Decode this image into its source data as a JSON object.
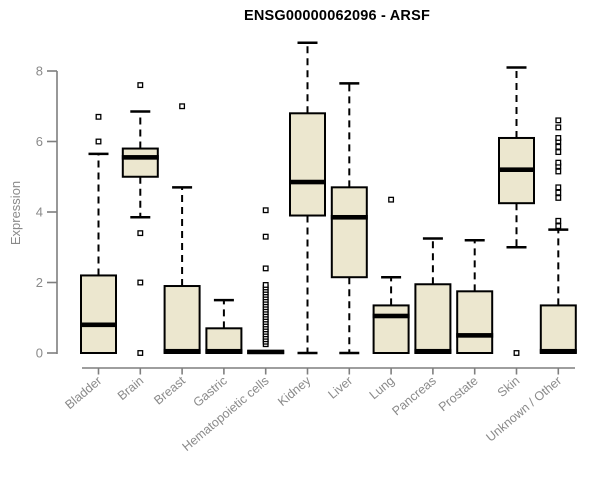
{
  "title": "ENSG00000062096 - ARSF",
  "chart_data": {
    "type": "boxplot",
    "title": "ENSG00000062096 - ARSF",
    "ylabel": "Expression",
    "xlabel": "",
    "ylim": [
      0,
      8.9
    ],
    "yticks": [
      0,
      2,
      4,
      6,
      8
    ],
    "grid": false,
    "legend": "none",
    "categories": [
      "Bladder",
      "Brain",
      "Breast",
      "Gastric",
      "Hematopoietic cells",
      "Kidney",
      "Liver",
      "Lung",
      "Pancreas",
      "Prostate",
      "Skin",
      "Unknown / Other"
    ],
    "series": [
      {
        "name": "Bladder",
        "whisker_low": 0,
        "q1": 0,
        "median": 0.8,
        "q3": 2.2,
        "whisker_high": 5.65,
        "outliers": [
          6.0,
          6.7
        ]
      },
      {
        "name": "Brain",
        "whisker_low": 3.85,
        "q1": 5.0,
        "median": 5.55,
        "q3": 5.8,
        "whisker_high": 6.85,
        "outliers": [
          0,
          2.0,
          3.4,
          7.6
        ]
      },
      {
        "name": "Breast",
        "whisker_low": 0,
        "q1": 0,
        "median": 0.05,
        "q3": 1.9,
        "whisker_high": 4.7,
        "outliers": [
          7.0
        ]
      },
      {
        "name": "Gastric",
        "whisker_low": 0,
        "q1": 0,
        "median": 0.05,
        "q3": 0.7,
        "whisker_high": 1.5,
        "outliers": []
      },
      {
        "name": "Hematopoietic cells",
        "whisker_low": 0,
        "q1": 0,
        "median": 0.03,
        "q3": 0.05,
        "whisker_high": 0.05,
        "outliers": [
          0.25,
          0.32,
          0.39,
          0.46,
          0.53,
          0.6,
          0.67,
          0.74,
          0.81,
          0.88,
          0.95,
          1.02,
          1.09,
          1.16,
          1.23,
          1.3,
          1.37,
          1.44,
          1.51,
          1.58,
          1.65,
          1.72,
          1.79,
          1.86,
          1.93,
          2.4,
          3.3,
          4.05
        ]
      },
      {
        "name": "Kidney",
        "whisker_low": 0,
        "q1": 3.9,
        "median": 4.85,
        "q3": 6.8,
        "whisker_high": 8.8,
        "outliers": []
      },
      {
        "name": "Liver",
        "whisker_low": 0,
        "q1": 2.15,
        "median": 3.85,
        "q3": 4.7,
        "whisker_high": 7.65,
        "outliers": []
      },
      {
        "name": "Lung",
        "whisker_low": 0,
        "q1": 0,
        "median": 1.05,
        "q3": 1.35,
        "whisker_high": 2.15,
        "outliers": [
          4.35
        ]
      },
      {
        "name": "Pancreas",
        "whisker_low": 0,
        "q1": 0,
        "median": 0.05,
        "q3": 1.95,
        "whisker_high": 3.25,
        "outliers": []
      },
      {
        "name": "Prostate",
        "whisker_low": 0,
        "q1": 0,
        "median": 0.5,
        "q3": 1.75,
        "whisker_high": 3.2,
        "outliers": []
      },
      {
        "name": "Skin",
        "whisker_low": 3.0,
        "q1": 4.25,
        "median": 5.2,
        "q3": 6.1,
        "whisker_high": 8.1,
        "outliers": [
          0
        ]
      },
      {
        "name": "Unknown / Other",
        "whisker_low": 0,
        "q1": 0,
        "median": 0.05,
        "q3": 1.35,
        "whisker_high": 3.5,
        "outliers": [
          3.6,
          3.75,
          4.4,
          4.55,
          4.7,
          5.15,
          5.3,
          5.4,
          5.7,
          5.85,
          6.0,
          6.1,
          6.4,
          6.6
        ]
      }
    ],
    "colors": {
      "box_fill": "#ECE7CF",
      "box_border": "#000000",
      "median": "#000000",
      "whisker": "#000000",
      "outlier_fill": "#FFFFFF",
      "axis": "#7F7F7F",
      "tick_label": "#8A8A8A",
      "title": "#000000",
      "background": "#FFFFFF"
    }
  }
}
